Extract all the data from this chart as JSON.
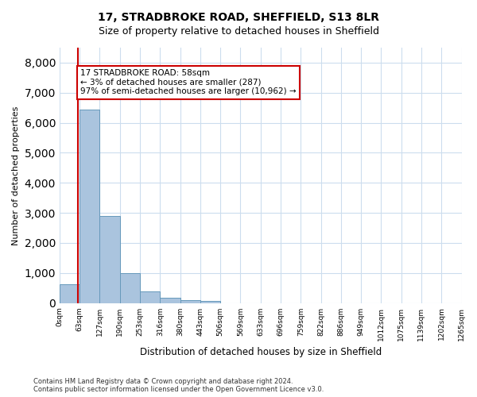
{
  "title_line1": "17, STRADBROKE ROAD, SHEFFIELD, S13 8LR",
  "title_line2": "Size of property relative to detached houses in Sheffield",
  "xlabel": "Distribution of detached houses by size in Sheffield",
  "ylabel": "Number of detached properties",
  "footnote": "Contains HM Land Registry data © Crown copyright and database right 2024.\nContains public sector information licensed under the Open Government Licence v3.0.",
  "bin_labels": [
    "0sqm",
    "63sqm",
    "127sqm",
    "190sqm",
    "253sqm",
    "316sqm",
    "380sqm",
    "443sqm",
    "506sqm",
    "569sqm",
    "633sqm",
    "696sqm",
    "759sqm",
    "822sqm",
    "886sqm",
    "949sqm",
    "1012sqm",
    "1075sqm",
    "1139sqm",
    "1202sqm",
    "1265sqm"
  ],
  "bar_heights": [
    620,
    6430,
    2900,
    1000,
    380,
    185,
    105,
    70,
    0,
    0,
    0,
    0,
    0,
    0,
    0,
    0,
    0,
    0,
    0,
    0
  ],
  "bar_color": "#aac4de",
  "bar_edge_color": "#6699bb",
  "property_sqm": 58,
  "annotation_title": "17 STRADBROKE ROAD: 58sqm",
  "annotation_line2": "← 3% of detached houses are smaller (287)",
  "annotation_line3": "97% of semi-detached houses are larger (10,962) →",
  "annotation_box_color": "#cc0000",
  "ylim": [
    0,
    8500
  ],
  "yticks": [
    0,
    1000,
    2000,
    3000,
    4000,
    5000,
    6000,
    7000,
    8000
  ],
  "background_color": "#ffffff",
  "grid_color": "#ccddee"
}
